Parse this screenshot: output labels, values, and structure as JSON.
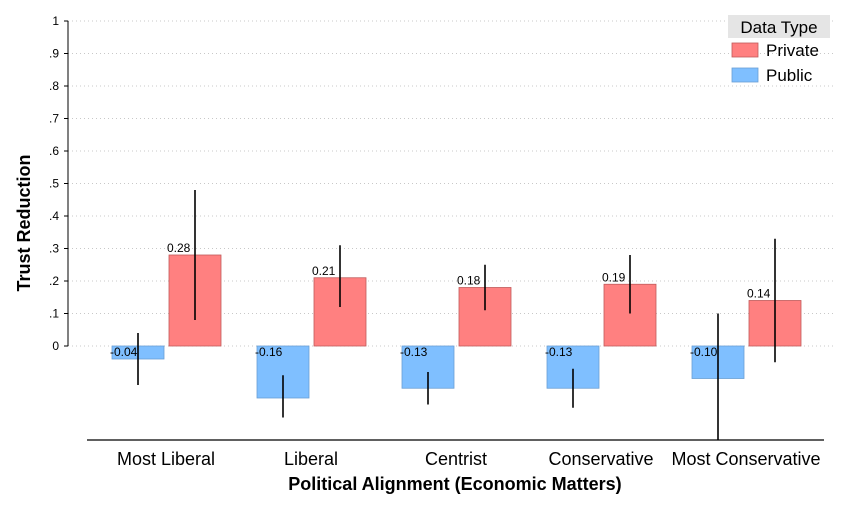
{
  "chart_data": {
    "type": "bar",
    "title": "",
    "xlabel": "Political Alignment (Economic Matters)",
    "ylabel": "Trust Reduction",
    "categories": [
      "Most Liberal",
      "Liberal",
      "Centrist",
      "Conservative",
      "Most Conservative"
    ],
    "ylim": [
      -0.3,
      1
    ],
    "yticks": [
      0,
      0.1,
      0.2,
      0.3,
      0.4,
      0.5,
      0.6,
      0.7,
      0.8,
      0.9,
      1
    ],
    "ytick_labels": [
      "0",
      ".1",
      ".2",
      ".3",
      ".4",
      ".5",
      ".6",
      ".7",
      ".8",
      ".9",
      "1"
    ],
    "grid": true,
    "legend": {
      "title": "Data Type",
      "position": "top-right"
    },
    "series": [
      {
        "name": "Public",
        "color": "#7fbfff",
        "values": [
          -0.04,
          -0.16,
          -0.13,
          -0.13,
          -0.1
        ],
        "labels": [
          "-0.04",
          "-0.16",
          "-0.13",
          "-0.13",
          "-0.10"
        ],
        "ci_low": [
          -0.12,
          -0.22,
          -0.18,
          -0.19,
          -0.29
        ],
        "ci_high": [
          0.04,
          -0.09,
          -0.08,
          -0.07,
          0.1
        ]
      },
      {
        "name": "Private",
        "color": "#ff8080",
        "values": [
          0.28,
          0.21,
          0.18,
          0.19,
          0.14
        ],
        "labels": [
          "0.28",
          "0.21",
          "0.18",
          "0.19",
          "0.14"
        ],
        "ci_low": [
          0.08,
          0.12,
          0.11,
          0.1,
          -0.05
        ],
        "ci_high": [
          0.48,
          0.31,
          0.25,
          0.28,
          0.33
        ]
      }
    ]
  }
}
